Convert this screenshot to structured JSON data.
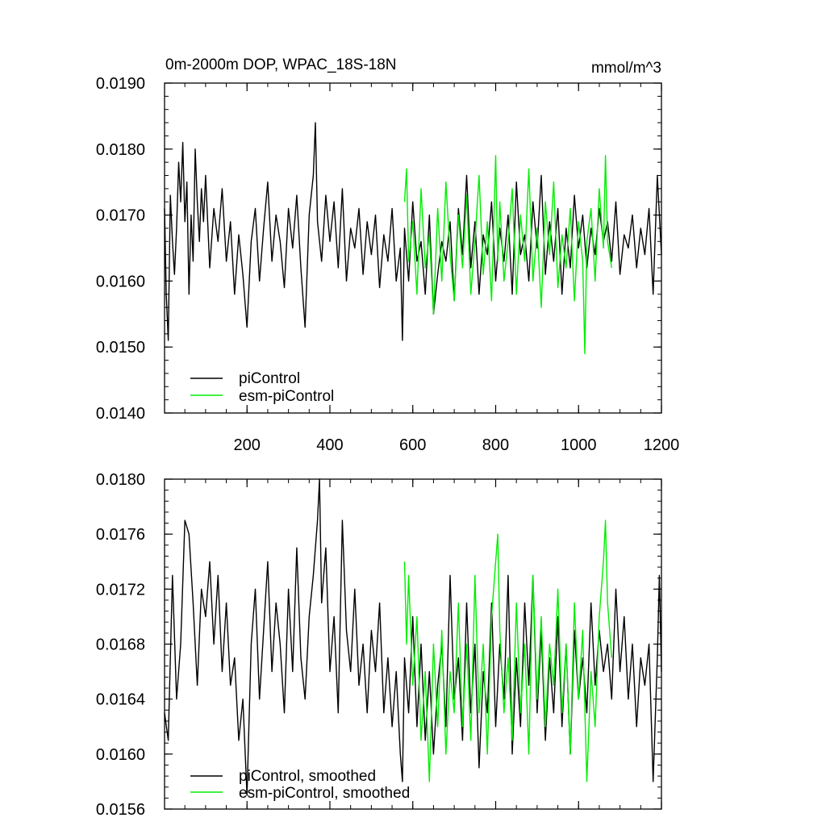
{
  "chart_data": [
    {
      "type": "line",
      "title": "0m-2000m DOP, WPAC_18S-18N",
      "units": "mmol/m^3",
      "xlim": [
        1,
        1200
      ],
      "ylim": [
        0.014,
        0.019
      ],
      "x_ticks": [
        200,
        400,
        600,
        800,
        1000,
        1200
      ],
      "x_tick_labels": [
        "200",
        "400",
        "600",
        "800",
        "1000",
        "1200"
      ],
      "y_ticks": [
        0.014,
        0.015,
        0.016,
        0.017,
        0.018,
        0.019
      ],
      "y_tick_labels": [
        "0.0140",
        "0.0150",
        "0.0160",
        "0.0170",
        "0.0180",
        "0.0190"
      ],
      "legend_position": "bottom-left",
      "series": [
        {
          "name": "piControl",
          "color": "#000000",
          "x": [
            1,
            5,
            10,
            15,
            20,
            25,
            30,
            35,
            40,
            45,
            50,
            55,
            60,
            65,
            70,
            75,
            80,
            85,
            90,
            95,
            100,
            110,
            120,
            130,
            140,
            150,
            160,
            170,
            180,
            190,
            200,
            210,
            220,
            230,
            240,
            250,
            260,
            270,
            280,
            290,
            300,
            310,
            320,
            330,
            340,
            350,
            360,
            365,
            370,
            380,
            390,
            400,
            410,
            420,
            430,
            440,
            450,
            460,
            470,
            480,
            490,
            500,
            510,
            520,
            530,
            540,
            550,
            560,
            570,
            575,
            580,
            590,
            600,
            610,
            620,
            630,
            640,
            650,
            660,
            670,
            680,
            690,
            700,
            710,
            720,
            730,
            740,
            750,
            760,
            770,
            780,
            790,
            800,
            810,
            820,
            830,
            840,
            850,
            860,
            870,
            880,
            890,
            900,
            910,
            920,
            930,
            940,
            950,
            960,
            970,
            980,
            990,
            1000,
            1010,
            1020,
            1030,
            1040,
            1050,
            1060,
            1070,
            1080,
            1090,
            1100,
            1110,
            1120,
            1130,
            1140,
            1150,
            1160,
            1170,
            1180,
            1190,
            1200
          ],
          "y": [
            0.0171,
            0.0158,
            0.0151,
            0.0173,
            0.0166,
            0.0161,
            0.0168,
            0.0178,
            0.0172,
            0.0181,
            0.0169,
            0.0175,
            0.0158,
            0.017,
            0.0163,
            0.018,
            0.0172,
            0.0166,
            0.0174,
            0.0169,
            0.0176,
            0.0162,
            0.0171,
            0.0166,
            0.0174,
            0.0163,
            0.0169,
            0.0158,
            0.0167,
            0.0161,
            0.0153,
            0.0166,
            0.0171,
            0.016,
            0.0168,
            0.0175,
            0.0163,
            0.017,
            0.0166,
            0.0159,
            0.0171,
            0.0165,
            0.0173,
            0.0162,
            0.0153,
            0.017,
            0.0176,
            0.0184,
            0.0169,
            0.0163,
            0.0173,
            0.0166,
            0.0172,
            0.0162,
            0.0174,
            0.016,
            0.0168,
            0.0165,
            0.0171,
            0.0161,
            0.0169,
            0.0164,
            0.017,
            0.0159,
            0.0167,
            0.0163,
            0.0171,
            0.016,
            0.0165,
            0.0151,
            0.0168,
            0.016,
            0.0172,
            0.0163,
            0.0166,
            0.0158,
            0.017,
            0.0155,
            0.0161,
            0.0166,
            0.0163,
            0.0169,
            0.0157,
            0.0171,
            0.0164,
            0.0176,
            0.0162,
            0.0169,
            0.0158,
            0.0167,
            0.0164,
            0.0172,
            0.016,
            0.0168,
            0.0163,
            0.017,
            0.0158,
            0.0175,
            0.0164,
            0.0167,
            0.016,
            0.0172,
            0.0165,
            0.0176,
            0.0161,
            0.0169,
            0.0163,
            0.0171,
            0.0158,
            0.0168,
            0.0162,
            0.0173,
            0.0165,
            0.017,
            0.0162,
            0.0168,
            0.0164,
            0.0171,
            0.0166,
            0.0169,
            0.0163,
            0.0172,
            0.0161,
            0.0167,
            0.0165,
            0.017,
            0.0162,
            0.0168,
            0.0164,
            0.0171,
            0.0158,
            0.0176,
            0.0164
          ]
        },
        {
          "name": "esm-piControl",
          "color": "#00ee00",
          "x": [
            580,
            585,
            590,
            600,
            610,
            620,
            630,
            640,
            650,
            660,
            670,
            680,
            690,
            700,
            710,
            720,
            730,
            740,
            750,
            760,
            770,
            780,
            790,
            800,
            805,
            810,
            820,
            830,
            840,
            850,
            860,
            870,
            880,
            890,
            900,
            910,
            920,
            930,
            940,
            950,
            960,
            970,
            980,
            990,
            1000,
            1010,
            1015,
            1020,
            1030,
            1040,
            1050,
            1060,
            1065,
            1070,
            1080
          ],
          "y": [
            0.0172,
            0.0177,
            0.0163,
            0.0169,
            0.0158,
            0.0174,
            0.0162,
            0.0167,
            0.0155,
            0.0171,
            0.016,
            0.0175,
            0.0164,
            0.0157,
            0.017,
            0.0162,
            0.0173,
            0.0158,
            0.0166,
            0.0176,
            0.0161,
            0.0169,
            0.0157,
            0.0179,
            0.0163,
            0.0172,
            0.016,
            0.0166,
            0.0174,
            0.0158,
            0.017,
            0.0163,
            0.0177,
            0.016,
            0.0168,
            0.0156,
            0.0172,
            0.0164,
            0.0175,
            0.0159,
            0.0167,
            0.0162,
            0.0171,
            0.0157,
            0.0169,
            0.0163,
            0.0149,
            0.0166,
            0.0171,
            0.016,
            0.0174,
            0.0165,
            0.0179,
            0.0166,
            0.0162
          ]
        }
      ]
    },
    {
      "type": "line",
      "xlim": [
        1,
        1200
      ],
      "ylim": [
        0.0156,
        0.018
      ],
      "x_ticks": [
        200,
        400,
        600,
        800,
        1000,
        1200
      ],
      "y_ticks": [
        0.0156,
        0.016,
        0.0164,
        0.0168,
        0.0172,
        0.0176,
        0.018
      ],
      "y_tick_labels": [
        "0.0156",
        "0.0160",
        "0.0164",
        "0.0168",
        "0.0172",
        "0.0176",
        "0.0180"
      ],
      "legend_position": "bottom-left",
      "series": [
        {
          "name": "piControl, smoothed",
          "color": "#000000",
          "x": [
            1,
            10,
            20,
            30,
            40,
            50,
            60,
            70,
            80,
            90,
            100,
            110,
            120,
            130,
            140,
            150,
            160,
            170,
            180,
            190,
            200,
            210,
            220,
            230,
            240,
            250,
            260,
            270,
            280,
            290,
            300,
            310,
            320,
            330,
            340,
            350,
            360,
            370,
            375,
            380,
            390,
            400,
            410,
            420,
            430,
            440,
            450,
            460,
            470,
            480,
            490,
            500,
            510,
            520,
            530,
            540,
            550,
            560,
            570,
            575,
            580,
            590,
            600,
            610,
            620,
            630,
            640,
            650,
            660,
            670,
            680,
            690,
            700,
            710,
            720,
            730,
            740,
            750,
            760,
            770,
            780,
            790,
            800,
            810,
            820,
            830,
            840,
            850,
            860,
            870,
            880,
            890,
            900,
            910,
            920,
            930,
            940,
            950,
            960,
            970,
            980,
            990,
            1000,
            1010,
            1020,
            1030,
            1040,
            1050,
            1060,
            1070,
            1080,
            1090,
            1100,
            1110,
            1120,
            1130,
            1140,
            1150,
            1160,
            1170,
            1180,
            1190,
            1195,
            1200
          ],
          "y": [
            0.0163,
            0.0161,
            0.0173,
            0.0164,
            0.0168,
            0.0177,
            0.0176,
            0.0171,
            0.0165,
            0.0172,
            0.017,
            0.0174,
            0.0168,
            0.0173,
            0.0166,
            0.0171,
            0.0165,
            0.0167,
            0.0161,
            0.0164,
            0.0157,
            0.0168,
            0.0172,
            0.0164,
            0.0169,
            0.0174,
            0.0166,
            0.0171,
            0.0168,
            0.0163,
            0.0172,
            0.0166,
            0.0175,
            0.0167,
            0.0164,
            0.017,
            0.0173,
            0.0177,
            0.018,
            0.0171,
            0.0175,
            0.0166,
            0.017,
            0.0163,
            0.0177,
            0.0169,
            0.0166,
            0.0172,
            0.0165,
            0.0168,
            0.0163,
            0.0169,
            0.0166,
            0.0171,
            0.0163,
            0.0167,
            0.0162,
            0.0166,
            0.016,
            0.0158,
            0.0167,
            0.0163,
            0.017,
            0.0162,
            0.0168,
            0.0161,
            0.0166,
            0.016,
            0.0165,
            0.0168,
            0.0162,
            0.0173,
            0.0164,
            0.0167,
            0.0161,
            0.0171,
            0.0163,
            0.0168,
            0.0159,
            0.0166,
            0.0163,
            0.0171,
            0.0162,
            0.0168,
            0.0164,
            0.0173,
            0.016,
            0.0167,
            0.0162,
            0.0171,
            0.0165,
            0.0173,
            0.0163,
            0.0169,
            0.0161,
            0.0167,
            0.0163,
            0.017,
            0.0162,
            0.0168,
            0.016,
            0.0169,
            0.0164,
            0.0167,
            0.0163,
            0.0171,
            0.0165,
            0.0169,
            0.0166,
            0.0168,
            0.0164,
            0.0172,
            0.0166,
            0.017,
            0.0164,
            0.0168,
            0.0162,
            0.0167,
            0.0165,
            0.0168,
            0.0158,
            0.0167,
            0.0173,
            0.0166
          ]
        },
        {
          "name": "esm-piControl, smoothed",
          "color": "#00ee00",
          "x": [
            580,
            585,
            590,
            600,
            610,
            620,
            630,
            640,
            650,
            660,
            670,
            680,
            690,
            700,
            710,
            720,
            730,
            740,
            750,
            760,
            770,
            780,
            790,
            800,
            805,
            810,
            820,
            830,
            840,
            850,
            860,
            870,
            880,
            890,
            900,
            910,
            920,
            930,
            940,
            950,
            960,
            970,
            980,
            990,
            1000,
            1010,
            1020,
            1030,
            1040,
            1050,
            1060,
            1065,
            1070,
            1080
          ],
          "y": [
            0.0174,
            0.0168,
            0.0173,
            0.0165,
            0.017,
            0.0161,
            0.0166,
            0.0158,
            0.0168,
            0.0162,
            0.0169,
            0.016,
            0.0166,
            0.0163,
            0.0171,
            0.0162,
            0.0168,
            0.0161,
            0.0173,
            0.0163,
            0.0168,
            0.016,
            0.017,
            0.0174,
            0.0176,
            0.0169,
            0.0163,
            0.0167,
            0.0161,
            0.0171,
            0.0163,
            0.0168,
            0.016,
            0.0173,
            0.0164,
            0.017,
            0.0162,
            0.0168,
            0.0165,
            0.0172,
            0.0163,
            0.0168,
            0.016,
            0.0171,
            0.0164,
            0.0169,
            0.0158,
            0.0166,
            0.0162,
            0.017,
            0.0174,
            0.0177,
            0.0171,
            0.0167
          ]
        }
      ]
    }
  ]
}
